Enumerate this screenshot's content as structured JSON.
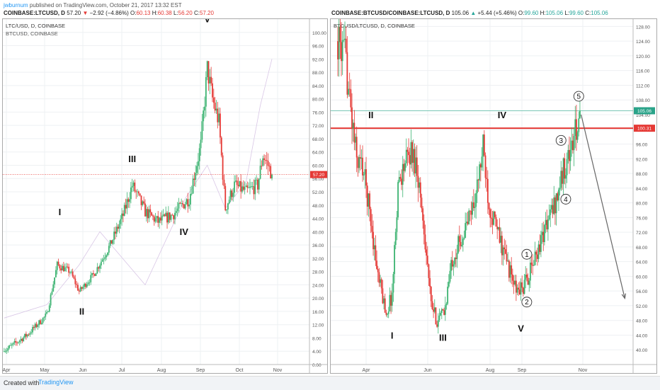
{
  "publish_line": {
    "author": "jwburnum",
    "text": "published on TradingView.com, October 21, 2017 13:32 EST"
  },
  "left_header": {
    "symbol": "COINBASE:LTCUSD, D",
    "last": "57.20",
    "change_arrow": "▼",
    "change": "−2.92 (−4.86%)",
    "o_label": "O:",
    "o": "60.13",
    "h_label": "H:",
    "h": "60.38",
    "l_label": "L:",
    "l": "56.20",
    "c_label": "C:",
    "c": "57.20"
  },
  "right_header": {
    "symbol": "COINBASE:BTCUSD/COINBASE:LTCUSD, D",
    "last": "105.06",
    "change_arrow": "▲",
    "change": "+5.44 (+5.46%)",
    "o_label": "O:",
    "o": "99.60",
    "h_label": "H:",
    "h": "105.06",
    "l_label": "L:",
    "l": "99.60",
    "c_label": "C:",
    "c": "105.06"
  },
  "footer": {
    "created_with": "Created with",
    "brand": "TradingView"
  },
  "chart_data": [
    {
      "type": "candlestick",
      "title": "LTC/USD, D, COINBASE",
      "overlay_series": "BTCUSD, COINBASE",
      "price_tag": "57.20",
      "ylim": [
        0,
        104
      ],
      "y_ticks": [
        "0.00",
        "4.00",
        "8.00",
        "12.00",
        "16.00",
        "20.00",
        "24.00",
        "28.00",
        "32.00",
        "36.00",
        "40.00",
        "44.00",
        "48.00",
        "52.00",
        "56.00",
        "60.00",
        "64.00",
        "68.00",
        "72.00",
        "76.00",
        "80.00",
        "84.00",
        "88.00",
        "92.00",
        "96.00",
        "100.00"
      ],
      "x_ticks": [
        "Apr",
        "May",
        "Jun",
        "Jul",
        "Aug",
        "Sep",
        "Oct",
        "Nov"
      ],
      "wave_labels": [
        {
          "text": "I",
          "date": "2017-05-10",
          "price": 45
        },
        {
          "text": "II",
          "date": "2017-05-27",
          "price": 15
        },
        {
          "text": "III",
          "date": "2017-07-05",
          "price": 61
        },
        {
          "text": "IV",
          "date": "2017-08-14",
          "price": 39
        },
        {
          "text": "V",
          "date": "2017-09-01",
          "price": 103
        }
      ],
      "trend": [
        [
          "2017-03-28",
          4
        ],
        [
          "2017-04-15",
          9
        ],
        [
          "2017-04-30",
          15
        ],
        [
          "2017-05-08",
          30
        ],
        [
          "2017-05-18",
          28
        ],
        [
          "2017-05-25",
          22
        ],
        [
          "2017-06-05",
          27
        ],
        [
          "2017-06-18",
          36
        ],
        [
          "2017-06-28",
          45
        ],
        [
          "2017-07-05",
          54
        ],
        [
          "2017-07-15",
          46
        ],
        [
          "2017-07-25",
          43
        ],
        [
          "2017-08-05",
          45
        ],
        [
          "2017-08-18",
          50
        ],
        [
          "2017-08-27",
          66
        ],
        [
          "2017-09-01",
          89
        ],
        [
          "2017-09-05",
          80
        ],
        [
          "2017-09-10",
          73
        ],
        [
          "2017-09-15",
          47
        ],
        [
          "2017-09-22",
          54
        ],
        [
          "2017-10-01",
          52
        ],
        [
          "2017-10-10",
          54
        ],
        [
          "2017-10-14",
          63
        ],
        [
          "2017-10-18",
          60
        ],
        [
          "2017-10-21",
          57.2
        ]
      ],
      "trend_low": 4,
      "trend_high": 98,
      "btc_overlay": [
        [
          "2017-03-28",
          14
        ],
        [
          "2017-04-30",
          18
        ],
        [
          "2017-05-25",
          30
        ],
        [
          "2017-06-10",
          40
        ],
        [
          "2017-07-15",
          24
        ],
        [
          "2017-08-15",
          50
        ],
        [
          "2017-09-01",
          60
        ],
        [
          "2017-09-15",
          47
        ],
        [
          "2017-10-01",
          55
        ],
        [
          "2017-10-12",
          78
        ],
        [
          "2017-10-21",
          92
        ]
      ]
    },
    {
      "type": "candlestick",
      "title": "BTCUSD/LTCUSD, D, COINBASE",
      "price_tags": [
        "105.06",
        "100.31"
      ],
      "horizontal_lines": [
        100.31,
        105.06
      ],
      "ylim": [
        36,
        130
      ],
      "y_ticks": [
        "40.00",
        "44.00",
        "48.00",
        "52.00",
        "56.00",
        "60.00",
        "64.00",
        "68.00",
        "72.00",
        "76.00",
        "80.00",
        "84.00",
        "88.00",
        "92.00",
        "96.00",
        "100.00",
        "104.00",
        "108.00",
        "112.00",
        "116.00",
        "120.00",
        "124.00",
        "128.00"
      ],
      "x_ticks": [
        "Apr",
        "Jun",
        "Aug",
        "Sep",
        "Nov"
      ],
      "wave_labels": [
        {
          "text": "I",
          "date": "2017-05-15",
          "price": 43
        },
        {
          "text": "II",
          "date": "2017-04-27",
          "price": 103
        },
        {
          "text": "III",
          "date": "2017-06-27",
          "price": 42.5
        },
        {
          "text": "IV",
          "date": "2017-08-16",
          "price": 103
        },
        {
          "text": "V",
          "date": "2017-09-01",
          "price": 45
        }
      ],
      "count_labels": [
        {
          "text": "1",
          "date": "2017-09-06",
          "price": 66
        },
        {
          "text": "2",
          "date": "2017-09-06",
          "price": 53
        },
        {
          "text": "3",
          "date": "2017-10-05",
          "price": 97
        },
        {
          "text": "4",
          "date": "2017-10-09",
          "price": 81
        },
        {
          "text": "5",
          "date": "2017-10-20",
          "price": 109
        }
      ],
      "projection": [
        [
          "2017-10-22",
          104
        ],
        [
          "2017-11-28",
          54
        ]
      ],
      "trend": [
        [
          "2017-03-30",
          124
        ],
        [
          "2017-04-05",
          120
        ],
        [
          "2017-04-10",
          105
        ],
        [
          "2017-04-15",
          92
        ],
        [
          "2017-04-20",
          90
        ],
        [
          "2017-04-25",
          80
        ],
        [
          "2017-05-03",
          60
        ],
        [
          "2017-05-10",
          50
        ],
        [
          "2017-05-15",
          55
        ],
        [
          "2017-05-20",
          85
        ],
        [
          "2017-05-25",
          90
        ],
        [
          "2017-05-31",
          94
        ],
        [
          "2017-06-05",
          90
        ],
        [
          "2017-06-12",
          70
        ],
        [
          "2017-06-17",
          52
        ],
        [
          "2017-06-22",
          48
        ],
        [
          "2017-06-28",
          50
        ],
        [
          "2017-07-05",
          65
        ],
        [
          "2017-07-15",
          72
        ],
        [
          "2017-07-25",
          82
        ],
        [
          "2017-07-31",
          95
        ],
        [
          "2017-08-05",
          80
        ],
        [
          "2017-08-12",
          72
        ],
        [
          "2017-08-20",
          64
        ],
        [
          "2017-08-28",
          56
        ],
        [
          "2017-09-03",
          57
        ],
        [
          "2017-09-10",
          62
        ],
        [
          "2017-09-20",
          72
        ],
        [
          "2017-09-30",
          80
        ],
        [
          "2017-10-08",
          90
        ],
        [
          "2017-10-15",
          96
        ],
        [
          "2017-10-21",
          105.06
        ]
      ],
      "trend_low": 42,
      "trend_high": 130
    }
  ]
}
